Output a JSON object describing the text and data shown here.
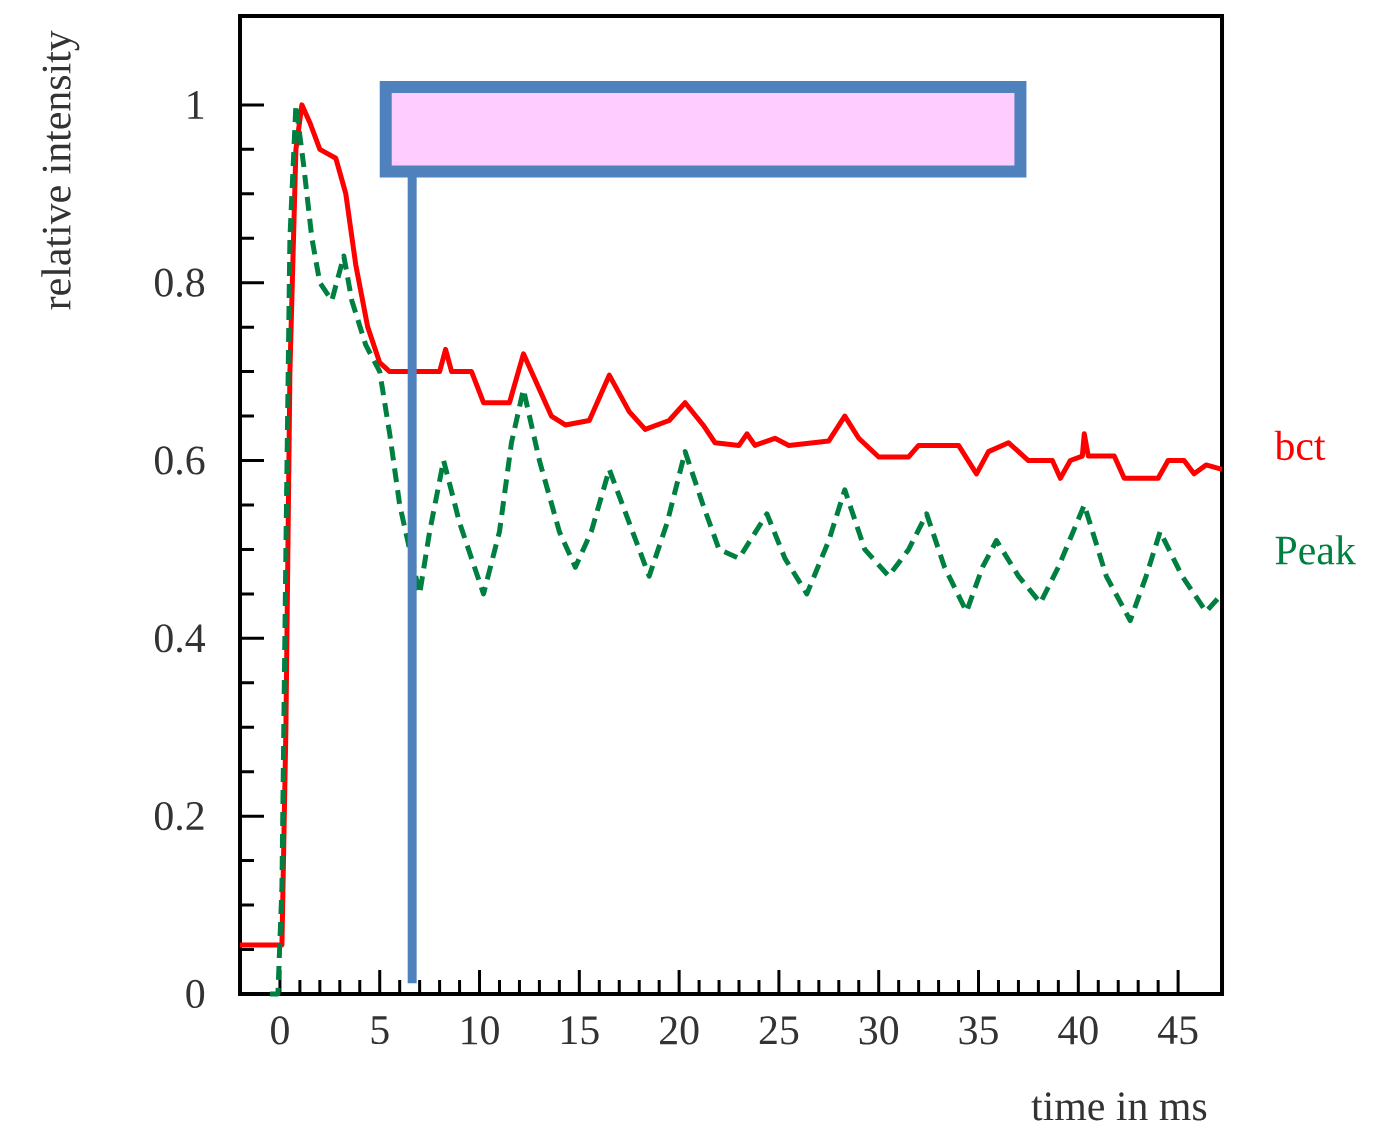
{
  "chart_data": {
    "type": "line",
    "xlabel": "time in ms",
    "ylabel": "relative intensity",
    "xlim": [
      -2,
      47.2
    ],
    "ylim": [
      0,
      1.1
    ],
    "xticks": [
      0,
      5,
      10,
      15,
      20,
      25,
      30,
      35,
      40,
      45
    ],
    "yticks": [
      0,
      0.2,
      0.4,
      0.6,
      0.8,
      1
    ],
    "grid": false,
    "series": [
      {
        "name": "bct",
        "color": "#ff0000",
        "line_style": "solid",
        "x": [
          -2,
          0.1,
          0.3,
          0.5,
          0.8,
          1.1,
          1.5,
          2,
          2.8,
          3.3,
          3.8,
          4.4,
          5,
          5.5,
          8,
          8.3,
          8.6,
          9.6,
          10.2,
          11.5,
          12.2,
          12.8,
          13.6,
          14.3,
          15.5,
          16.5,
          17.5,
          18.3,
          19.5,
          20.3,
          21.2,
          21.8,
          23,
          23.4,
          23.8,
          24.8,
          25.5,
          27.5,
          28.3,
          29,
          30,
          31.5,
          32,
          34,
          34.9,
          35.5,
          36.5,
          37.5,
          38.7,
          39.1,
          39.6,
          40.2,
          40.3,
          40.5,
          41.8,
          42.3,
          44,
          44.5,
          45.3,
          45.8,
          46.4,
          47.2
        ],
        "values": [
          0.055,
          0.055,
          0.3,
          0.7,
          0.95,
          1.0,
          0.98,
          0.95,
          0.94,
          0.9,
          0.82,
          0.75,
          0.71,
          0.7,
          0.7,
          0.725,
          0.7,
          0.7,
          0.665,
          0.665,
          0.72,
          0.69,
          0.65,
          0.64,
          0.645,
          0.696,
          0.655,
          0.635,
          0.645,
          0.665,
          0.64,
          0.62,
          0.617,
          0.63,
          0.617,
          0.625,
          0.617,
          0.622,
          0.65,
          0.625,
          0.604,
          0.604,
          0.617,
          0.617,
          0.585,
          0.61,
          0.62,
          0.6,
          0.6,
          0.58,
          0.6,
          0.605,
          0.63,
          0.605,
          0.605,
          0.58,
          0.58,
          0.6,
          0.6,
          0.585,
          0.595,
          0.59
        ]
      },
      {
        "name": "Peak",
        "color": "#008040",
        "line_style": "dashed",
        "x": [
          -0.5,
          -0.1,
          0.1,
          0.3,
          0.5,
          0.8,
          1.2,
          1.6,
          2,
          2.6,
          3.2,
          3.6,
          4.3,
          5,
          5.5,
          6,
          7,
          7.5,
          8.2,
          9,
          10.2,
          11,
          11.6,
          12.2,
          13,
          14,
          14.8,
          15.6,
          16.5,
          17.5,
          18.5,
          19.4,
          20.3,
          21.2,
          22,
          23,
          24.4,
          25.3,
          26.4,
          27.5,
          28.3,
          29.3,
          30.5,
          31.5,
          32.4,
          33.3,
          34.4,
          35.2,
          35.9,
          37,
          38.1,
          39,
          40.3,
          41.4,
          42.6,
          43.4,
          44.1,
          45.2,
          46.4,
          47.2
        ],
        "values": [
          0,
          0,
          0.12,
          0.5,
          0.85,
          1.0,
          0.93,
          0.85,
          0.8,
          0.78,
          0.83,
          0.78,
          0.73,
          0.7,
          0.63,
          0.55,
          0.45,
          0.52,
          0.6,
          0.53,
          0.45,
          0.52,
          0.62,
          0.68,
          0.6,
          0.52,
          0.48,
          0.52,
          0.59,
          0.53,
          0.47,
          0.53,
          0.61,
          0.55,
          0.5,
          0.49,
          0.54,
          0.49,
          0.45,
          0.51,
          0.567,
          0.5,
          0.47,
          0.5,
          0.54,
          0.48,
          0.43,
          0.48,
          0.51,
          0.47,
          0.44,
          0.48,
          0.55,
          0.47,
          0.42,
          0.47,
          0.52,
          0.47,
          0.43,
          0.45
        ]
      }
    ]
  }
}
